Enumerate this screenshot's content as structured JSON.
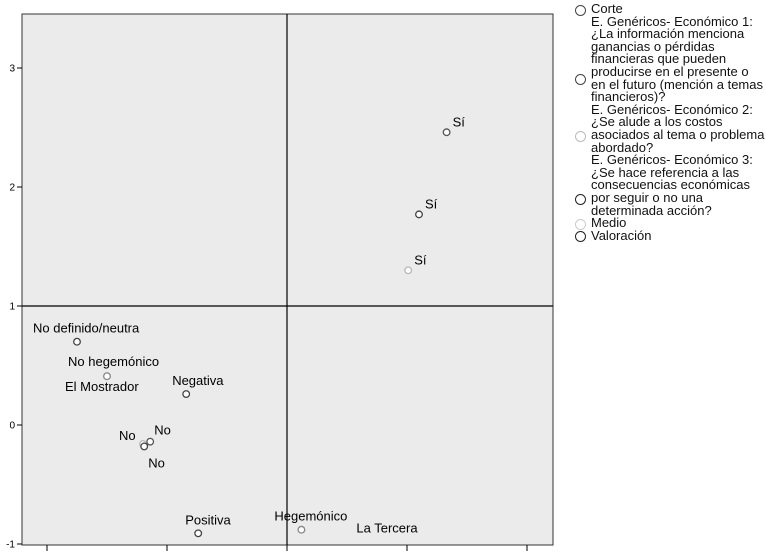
{
  "chart_data": {
    "type": "scatter",
    "title": "",
    "xlabel": "",
    "ylabel": "",
    "xlim": [
      -2.1,
      2.1
    ],
    "ylim": [
      -1.0,
      3.35
    ],
    "x_ticks": [
      -2,
      -1,
      0,
      1,
      2
    ],
    "y_ticks": [
      -1,
      0,
      1,
      2,
      3
    ],
    "y_tick_labels": [
      "-1",
      "0",
      "1",
      "2",
      "3"
    ],
    "reference_lines": {
      "x": 0,
      "y": 1
    },
    "grid": false,
    "plot_background": "#ebebeb",
    "legend_position": "right",
    "points": [
      {
        "label": "Sí",
        "x": 1.33,
        "y": 2.46,
        "series": "E. Genéricos- Económico 1: ¿La información menciona ganancias o pérdidas financieras que pueden producirse en el presente o en el futuro (mención a temas financieros)?",
        "color": "#555555"
      },
      {
        "label": "Sí",
        "x": 1.1,
        "y": 1.77,
        "series": "E. Genéricos- Económico 3: ¿Se hace referencia a las consecuencias económicas por seguir o no una determinada acción?",
        "color": "#444444"
      },
      {
        "label": "Sí",
        "x": 1.01,
        "y": 1.3,
        "series": "E. Genéricos- Económico 2: ¿Se alude a los costos asociados al tema o problema abordado?",
        "color": "#b8b8b8"
      },
      {
        "label": "No definido/neutra",
        "x": -1.75,
        "y": 0.7,
        "series": "Valoración",
        "color": "#444444"
      },
      {
        "label": "No hegemónico",
        "x": -1.5,
        "y": 0.41,
        "series": "Medio",
        "color": "#c8c8c8"
      },
      {
        "label": "El Mostrador",
        "x": -1.5,
        "y": 0.41,
        "series": "Corte",
        "color": "#888888"
      },
      {
        "label": "Negativa",
        "x": -0.84,
        "y": 0.26,
        "series": "Valoración",
        "color": "#444444"
      },
      {
        "label": "No",
        "x": -1.2,
        "y": -0.16,
        "series": "E. Genéricos- Económico 2: ¿Se alude a los costos asociados al tema o problema abordado?",
        "color": "#b8b8b8"
      },
      {
        "label": "No",
        "x": -1.14,
        "y": -0.14,
        "series": "E. Genéricos- Económico 1: ¿La información menciona ganancias o pérdidas financieras que pueden producirse en el presente o en el futuro (mención a temas financieros)?",
        "color": "#555555"
      },
      {
        "label": "No",
        "x": -1.19,
        "y": -0.18,
        "series": "E. Genéricos- Económico 3: ¿Se hace referencia a las consecuencias económicas por seguir o no una determinada acción?",
        "color": "#444444"
      },
      {
        "label": "Positiva",
        "x": -0.74,
        "y": -0.91,
        "series": "Valoración",
        "color": "#444444"
      },
      {
        "label": "Hegemónico",
        "x": 0.12,
        "y": -0.88,
        "series": "Medio",
        "color": "#c8c8c8"
      },
      {
        "label": "La Tercera",
        "x": 0.12,
        "y": -0.88,
        "series": "Corte",
        "color": "#888888"
      }
    ]
  },
  "legend": {
    "items": [
      {
        "text": "Corte",
        "color": "#444444",
        "fill": "#ffffff",
        "lines": 1
      },
      {
        "text": "E. Genéricos- Económico 1: ¿La información menciona ganancias o pérdidas financieras que pueden producirse en el presente o en el futuro (mención a temas financieros)?",
        "color": "#444444",
        "fill": "#ffffff",
        "lines": 10
      },
      {
        "text": "E. Genéricos- Económico 2: ¿Se alude a los costos asociados al tema o problema abordado?",
        "color": "#bbbbbb",
        "fill": "#ffffff",
        "lines": 5
      },
      {
        "text": "E. Genéricos- Económico 3: ¿Se hace referencia a las consecuencias económicas por seguir o no una determinada acción?",
        "color": "#222222",
        "fill": "#ffffff",
        "lines": 7
      },
      {
        "text": "Medio",
        "color": "#cccccc",
        "fill": "#ffffff",
        "lines": 1
      },
      {
        "text": "Valoración",
        "color": "#222222",
        "fill": "#ffffff",
        "lines": 1
      }
    ]
  }
}
